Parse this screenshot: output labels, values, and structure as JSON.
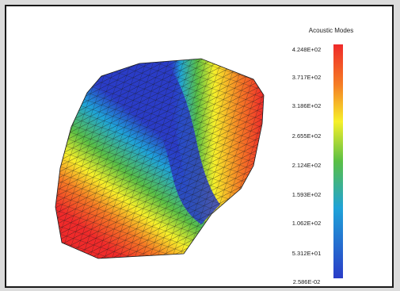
{
  "legend": {
    "title": "Acoustic Modes",
    "ticks": [
      "4.248E+02",
      "3.717E+02",
      "3.186E+02",
      "2.655E+02",
      "2.124E+02",
      "1.593E+02",
      "1.062E+02",
      "5.312E+01",
      "2.586E-02"
    ]
  },
  "colors": {
    "scale": [
      "#ef2a2a",
      "#f57c25",
      "#f6f02a",
      "#5abf45",
      "#1fa3d8",
      "#2a3cc7"
    ],
    "background": "#ffffff",
    "mesh_lines": "#1b1b1b"
  }
}
